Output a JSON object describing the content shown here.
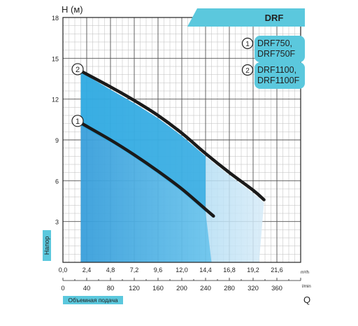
{
  "chart_data": {
    "type": "line",
    "title": "DRF",
    "ylabel": "H (м)",
    "ylabel_side": "Напор",
    "xlabel_side": "Объемная подача",
    "xlabel_end": "Q",
    "x_unit": "m³/h",
    "x2_unit": "l/min",
    "xlim": [
      0,
      24
    ],
    "ylim": [
      0,
      18
    ],
    "x_ticks": [
      "0,0",
      "2,4",
      "4,8",
      "7,2",
      "9,6",
      "12,0",
      "14,4",
      "16,8",
      "19,2",
      "21,6"
    ],
    "x_tick_values": [
      0,
      2.4,
      4.8,
      7.2,
      9.6,
      12.0,
      14.4,
      16.8,
      19.2,
      21.6
    ],
    "x2_ticks": [
      "0",
      "40",
      "80",
      "120",
      "160",
      "200",
      "240",
      "280",
      "320",
      "360"
    ],
    "y_ticks": [
      "3",
      "6",
      "9",
      "12",
      "15",
      "18"
    ],
    "y_tick_values": [
      3,
      6,
      9,
      12,
      15,
      18
    ],
    "grid": true,
    "legend": [
      {
        "marker": "1",
        "text": "DRF750,\nDRF750F"
      },
      {
        "marker": "2",
        "text": "DRF1100,\nDRF1100F"
      }
    ],
    "series": [
      {
        "marker": "1",
        "color": "#1a1a1a",
        "x": [
          1.2,
          4.8,
          7.2,
          9.6,
          12.0,
          14.4,
          15.2
        ],
        "y": [
          10.5,
          9.0,
          7.9,
          6.7,
          5.4,
          3.9,
          3.4
        ]
      },
      {
        "marker": "2",
        "color": "#1a1a1a",
        "x": [
          1.2,
          4.8,
          7.2,
          9.6,
          12.0,
          14.4,
          16.8,
          19.2,
          20.3
        ],
        "y": [
          14.3,
          12.9,
          11.9,
          10.8,
          9.5,
          8.0,
          6.6,
          5.3,
          4.6
        ]
      }
    ],
    "colors": {
      "accent": "#5bc8dd",
      "deep": "#1f9ad6",
      "light": "#cfe8f6",
      "curve": "#1a1a1a"
    }
  }
}
